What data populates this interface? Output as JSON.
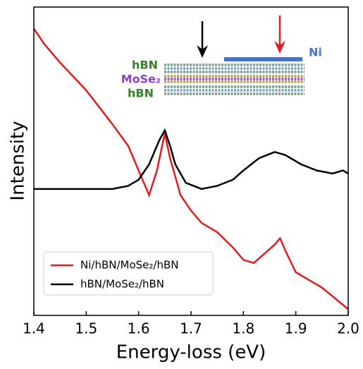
{
  "chart_data": {
    "type": "line",
    "xlabel": "Energy-loss (eV)",
    "ylabel": "Intensity",
    "xlim": [
      1.4,
      2.0
    ],
    "xticks": [
      1.4,
      1.5,
      1.6,
      1.7,
      1.8,
      1.9,
      {
        "value": 2,
        "label": "2.0"
      }
    ],
    "ylim": [
      0,
      1
    ],
    "legend": "lower left",
    "annotations": [
      "hBN",
      "MoSe₂",
      "hBN",
      "Ni"
    ],
    "series": [
      {
        "name": "Ni/hBN/MoSe₂/hBN",
        "color": "#e8191b",
        "x": [
          1.4,
          1.42,
          1.45,
          1.5,
          1.55,
          1.58,
          1.6,
          1.62,
          1.635,
          1.65,
          1.66,
          1.68,
          1.7,
          1.72,
          1.75,
          1.78,
          1.8,
          1.82,
          1.84,
          1.86,
          1.87,
          1.88,
          1.9,
          1.95,
          2.0
        ],
        "values": [
          0.93,
          0.88,
          0.82,
          0.73,
          0.62,
          0.55,
          0.47,
          0.39,
          0.47,
          0.59,
          0.51,
          0.39,
          0.34,
          0.3,
          0.27,
          0.22,
          0.18,
          0.17,
          0.2,
          0.23,
          0.25,
          0.21,
          0.14,
          0.09,
          0.02
        ]
      },
      {
        "name": "hBN/MoSe₂/hBN",
        "color": "#000000",
        "x": [
          1.4,
          1.45,
          1.5,
          1.55,
          1.58,
          1.6,
          1.62,
          1.64,
          1.65,
          1.66,
          1.67,
          1.69,
          1.72,
          1.75,
          1.78,
          1.8,
          1.83,
          1.86,
          1.88,
          1.91,
          1.94,
          1.97,
          1.99,
          2.0
        ],
        "values": [
          0.41,
          0.41,
          0.41,
          0.41,
          0.42,
          0.44,
          0.49,
          0.57,
          0.6,
          0.55,
          0.49,
          0.43,
          0.41,
          0.42,
          0.44,
          0.47,
          0.51,
          0.53,
          0.52,
          0.49,
          0.47,
          0.46,
          0.47,
          0.46
        ]
      }
    ]
  }
}
